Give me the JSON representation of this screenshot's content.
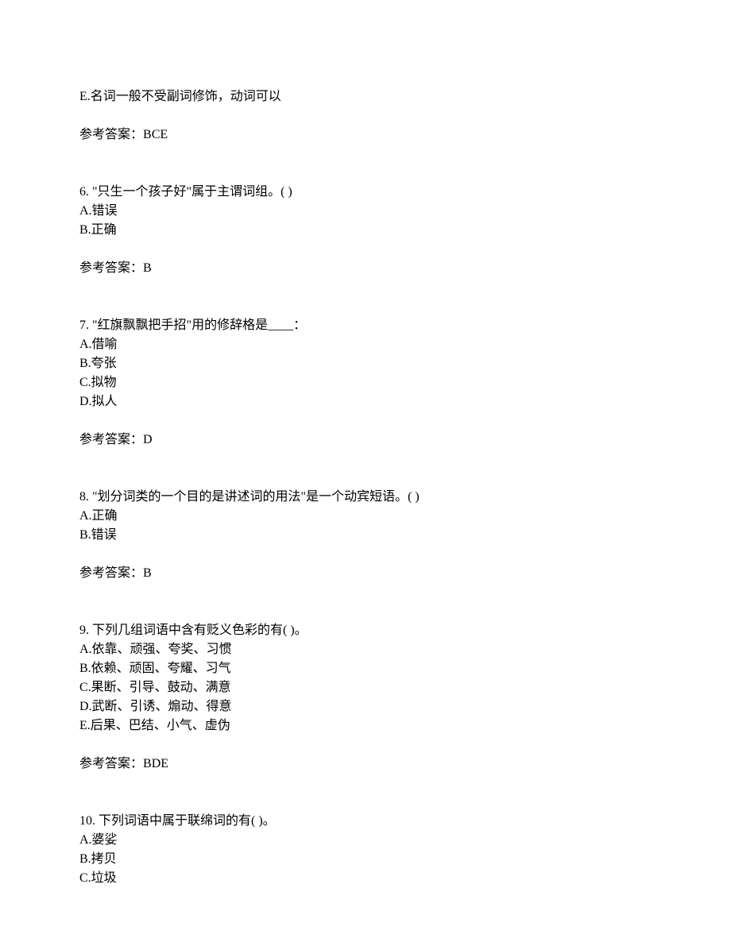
{
  "prev_option": "E.名词一般不受副词修饰，动词可以",
  "prev_answer_label": "参考答案：",
  "prev_answer": "BCE",
  "q6": {
    "number": "6. ",
    "text": "\"只生一个孩子好\"属于主谓词组。(  )",
    "options": [
      "A.错误",
      "B.正确"
    ],
    "answer_label": "参考答案：",
    "answer": "B"
  },
  "q7": {
    "number": "7. ",
    "text": "\"红旗飘飘把手招\"用的修辞格是____：",
    "options": [
      "A.借喻",
      "B.夸张",
      "C.拟物",
      "D.拟人"
    ],
    "answer_label": "参考答案：",
    "answer": "D"
  },
  "q8": {
    "number": "8. ",
    "text": "\"划分词类的一个目的是讲述词的用法\"是一个动宾短语。(  )",
    "options": [
      "A.正确",
      "B.错误"
    ],
    "answer_label": "参考答案：",
    "answer": "B"
  },
  "q9": {
    "number": "9. ",
    "text": "下列几组词语中含有贬义色彩的有(  )。",
    "options": [
      "A.依靠、顽强、夸奖、习惯",
      "B.依赖、顽固、夸耀、习气",
      "C.果断、引导、鼓动、满意",
      "D.武断、引诱、煽动、得意",
      "E.后果、巴结、小气、虚伪"
    ],
    "answer_label": "参考答案：",
    "answer": "BDE"
  },
  "q10": {
    "number": "10. ",
    "text": "下列词语中属于联绵词的有(  )。",
    "options": [
      "A.婆娑",
      "B.拷贝",
      "C.垃圾"
    ]
  }
}
